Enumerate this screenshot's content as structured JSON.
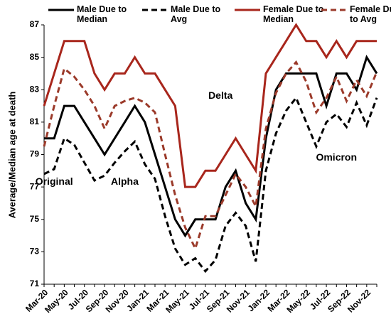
{
  "chart_data": {
    "type": "line",
    "y_label": "Average/Median age at death",
    "categories": [
      "Mar-20",
      null,
      "May-20",
      null,
      "Jul-20",
      null,
      "Sep-20",
      null,
      "Nov-20",
      null,
      "Jan-21",
      null,
      "Mar-21",
      null,
      "May-21",
      null,
      "Jul-21",
      null,
      "Sep-21",
      null,
      "Nov-21",
      null,
      "Jan-22",
      null,
      "Mar-22",
      null,
      "May-22",
      null,
      "Jul-22",
      null,
      "Sep-22",
      null,
      "Nov-22",
      null
    ],
    "series": [
      {
        "name": "Male Due to Median",
        "color": "#000000",
        "dashed": false,
        "values": [
          80,
          80,
          82,
          82,
          81,
          80,
          79,
          80,
          81,
          82,
          81,
          79,
          77,
          75,
          74,
          75,
          75,
          75,
          77,
          78,
          76,
          75,
          80,
          83,
          84,
          84,
          84,
          84,
          82,
          84,
          84,
          83,
          85,
          84
        ]
      },
      {
        "name": "Male Due to Avg",
        "color": "#000000",
        "dashed": true,
        "values": [
          77.8,
          78.1,
          80,
          79.6,
          78.5,
          77.4,
          77.7,
          78.5,
          79.2,
          79.8,
          78.4,
          77.5,
          75.2,
          73.2,
          72.2,
          72.6,
          71.8,
          72.5,
          74.6,
          75.4,
          74.6,
          72.4,
          78,
          80.3,
          81.7,
          82.5,
          81,
          79.5,
          81,
          81.5,
          80.7,
          82.2,
          80.8,
          82.5
        ]
      },
      {
        "name": "Female Due to Median",
        "color": "#a8261c",
        "dashed": false,
        "values": [
          82,
          84,
          86,
          86,
          86,
          84,
          83,
          84,
          84,
          85,
          84,
          84,
          83,
          82,
          77,
          77,
          78,
          78,
          79,
          80,
          79,
          78,
          84,
          85,
          86,
          87,
          86,
          86,
          85,
          86,
          85,
          86,
          86,
          86
        ]
      },
      {
        "name": "Female Due to Avg",
        "color": "#9b3a2a",
        "dashed": true,
        "values": [
          79.5,
          82,
          84.3,
          83.8,
          83,
          82,
          80.6,
          82,
          82.3,
          82.5,
          82.2,
          81.6,
          79,
          76.5,
          74.5,
          73.2,
          75.2,
          75.2,
          76.5,
          77.8,
          77,
          75.8,
          80.6,
          82.8,
          84,
          84.7,
          83.5,
          81.6,
          82.5,
          83.8,
          82.3,
          83.6,
          82.6,
          84.1
        ]
      }
    ],
    "ylim": [
      71,
      87
    ],
    "yticks": [
      71,
      73,
      75,
      77,
      79,
      81,
      83,
      85,
      87
    ],
    "grid": false,
    "legend": "top",
    "annotations": [
      {
        "text": "Original",
        "x": 1,
        "y": 77.3
      },
      {
        "text": "Alpha",
        "x": 8,
        "y": 77.3
      },
      {
        "text": "Delta",
        "x": 17.5,
        "y": 82.6
      },
      {
        "text": "Omicron",
        "x": 29,
        "y": 78.8
      }
    ]
  }
}
